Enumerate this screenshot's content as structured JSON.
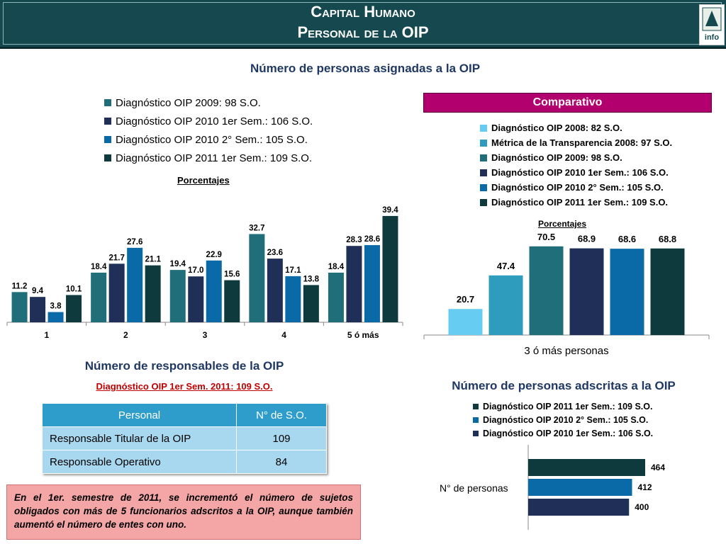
{
  "header": {
    "title_line1": "Capital Humano",
    "title_line2": "Personal de la OIP",
    "logo_text": "info"
  },
  "left_chart": {
    "section_title": "Número de personas asignadas a la OIP",
    "subtitle": "Porcentajes",
    "chart_data": {
      "type": "bar",
      "categories": [
        "1",
        "2",
        "3",
        "4",
        "5 ó más"
      ],
      "series": [
        {
          "name": "Diagnóstico OIP 2009: 98 S.O.",
          "color": "#1f6e7a",
          "values": [
            11.2,
            18.4,
            19.4,
            32.7,
            18.4
          ]
        },
        {
          "name": "Diagnóstico OIP 2010 1er Sem.: 106 S.O.",
          "color": "#1f2f57",
          "values": [
            9.4,
            21.7,
            17.0,
            23.6,
            28.3
          ]
        },
        {
          "name": "Diagnóstico OIP 2010 2° Sem.: 105 S.O.",
          "color": "#0a6aa8",
          "values": [
            3.8,
            27.6,
            22.9,
            17.1,
            28.6
          ]
        },
        {
          "name": "Diagnóstico OIP 2011 1er Sem.: 109 S.O.",
          "color": "#0e3a3e",
          "values": [
            10.1,
            21.1,
            15.6,
            13.8,
            39.4
          ]
        }
      ],
      "value_labels": [
        [
          "11.2",
          "18.4",
          "19.4",
          "32.7",
          "18.4"
        ],
        [
          "9.4",
          "21.7",
          "17.0",
          "23.6",
          "28.3"
        ],
        [
          "3.8",
          "27.6",
          "22.9",
          "17.1",
          "28.6"
        ],
        [
          "10.1",
          "21.1",
          "15.6",
          "13.8",
          "39.4"
        ]
      ],
      "ylim": [
        0,
        42
      ]
    }
  },
  "comparativo": {
    "header": "Comparativo",
    "subtitle": "Porcentajes",
    "chart_data": {
      "type": "bar",
      "categories": [
        "3 ó más personas"
      ],
      "series": [
        {
          "name": "Diagnóstico OIP 2008: 82 S.O.",
          "color": "#66ccf2",
          "values": [
            20.7
          ]
        },
        {
          "name": "Métrica de la Transparencia 2008: 97 S.O.",
          "color": "#2e9dbd",
          "values": [
            47.4
          ]
        },
        {
          "name": "Diagnóstico OIP 2009: 98 S.O.",
          "color": "#1f6e7a",
          "values": [
            70.5
          ]
        },
        {
          "name": "Diagnóstico OIP 2010 1er Sem.: 106 S.O.",
          "color": "#1f2f57",
          "values": [
            68.9
          ]
        },
        {
          "name": "Diagnóstico OIP 2010 2° Sem.: 105 S.O.",
          "color": "#0a6aa8",
          "values": [
            68.6
          ]
        },
        {
          "name": "Diagnóstico OIP 2011 1er Sem.: 109 S.O.",
          "color": "#0e3a3e",
          "values": [
            68.8
          ]
        }
      ],
      "value_labels": [
        "20.7",
        "47.4",
        "70.5",
        "68.9",
        "68.6",
        "68.8"
      ],
      "ylim": [
        0,
        76
      ]
    }
  },
  "responsables": {
    "section_title": "Número de responsables de la OIP",
    "subtitle": "Diagnóstico OIP 1er Sem. 2011: 109 S.O.",
    "columns": [
      "Personal",
      "N° de S.O."
    ],
    "rows": [
      {
        "label": "Responsable Titular de la OIP",
        "value": "109"
      },
      {
        "label": "Responsable Operativo",
        "value": "84"
      }
    ]
  },
  "adscritas": {
    "section_title": "Número de personas adscritas a la OIP",
    "chart_data": {
      "type": "bar",
      "orientation": "horizontal",
      "categories": [
        "N° de personas"
      ],
      "series": [
        {
          "name": "Diagnóstico OIP 2011 1er Sem.: 109 S.O.",
          "color": "#0e3a3e",
          "values": [
            464
          ]
        },
        {
          "name": "Diagnóstico OIP 2010 2° Sem.: 105 S.O.",
          "color": "#0a6aa8",
          "values": [
            412
          ]
        },
        {
          "name": "Diagnóstico OIP 2010 1er Sem.: 106 S.O.",
          "color": "#1f2f57",
          "values": [
            400
          ]
        }
      ],
      "value_labels": [
        "464",
        "412",
        "400"
      ],
      "xlim": [
        0,
        464
      ]
    }
  },
  "note": {
    "text": "En el 1er. semestre de 2011, se incrementó el número de sujetos obligados con más de 5 funcionarios adscritos a la OIP, aunque también aumentó el número de entes con uno."
  }
}
